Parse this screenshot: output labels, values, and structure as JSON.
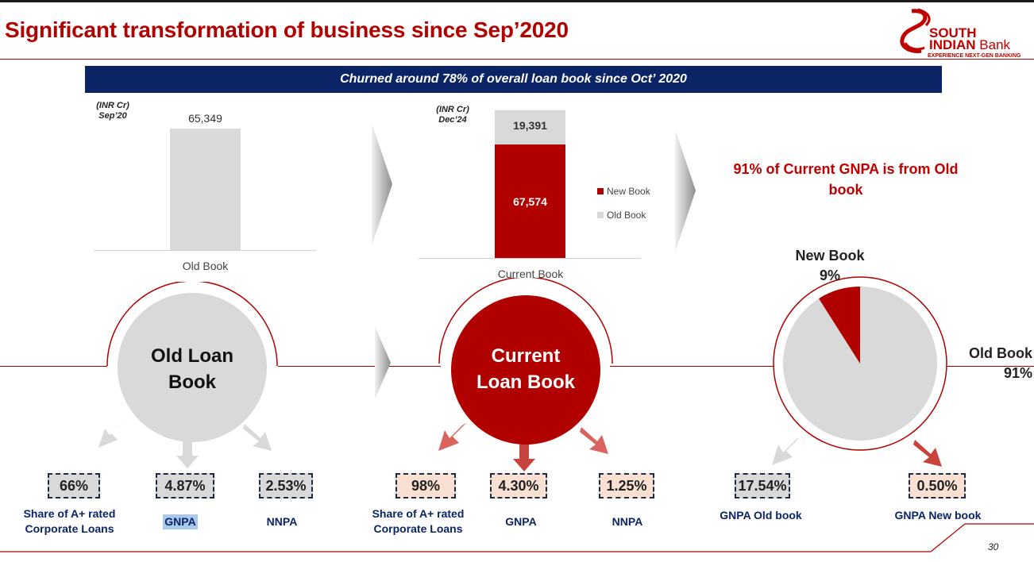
{
  "header": {
    "title": "Significant transformation of business since Sep’2020",
    "logo_line1": "SOUTH",
    "logo_line2a": "INDIAN",
    "logo_line2b": " Bank",
    "logo_tagline": "EXPERIENCE NEXT-GEN BANKING"
  },
  "banner": "Churned around 78% of overall loan book since Oct’ 2020",
  "chart_sep20": {
    "unit": "(INR Cr)",
    "period": "Sep’20",
    "category": "Old Book",
    "value_label": "65,349"
  },
  "chart_dec24": {
    "unit": "(INR Cr)",
    "period": "Dec’24",
    "category": "Current Book",
    "old_label": "19,391",
    "new_label": "67,574",
    "legend_new": "New Book",
    "legend_old": "Old Book"
  },
  "gnpa_headline": "91% of Current GNPA is from Old book",
  "pie": {
    "new_name": "New Book",
    "new_pct": "9%",
    "old_name": "Old Book",
    "old_pct": "91%"
  },
  "old_loan_book": {
    "title_line1": "Old Loan",
    "title_line2": "Book",
    "metrics": [
      {
        "value": "66%",
        "label1": "Share of A+ rated",
        "label2": "Corporate Loans"
      },
      {
        "value": "4.87%",
        "label1": "GNPA"
      },
      {
        "value": "2.53%",
        "label1": "NNPA"
      }
    ]
  },
  "current_loan_book": {
    "title_line1": "Current",
    "title_line2": "Loan Book",
    "metrics": [
      {
        "value": "98%",
        "label1": "Share of A+ rated",
        "label2": "Corporate Loans"
      },
      {
        "value": "4.30%",
        "label1": "GNPA"
      },
      {
        "value": "1.25%",
        "label1": "NNPA"
      }
    ]
  },
  "gnpa_split": {
    "metrics": [
      {
        "value": "17.54%",
        "label1": "GNPA Old book"
      },
      {
        "value": "0.50%",
        "label1": "GNPA New book"
      }
    ]
  },
  "page_number": "30",
  "colors": {
    "brand_red": "#b00000",
    "navy": "#0b2466",
    "grey": "#d9d9d9",
    "light_pink": "#f9e0d3"
  },
  "chart_data": [
    {
      "type": "bar",
      "title": "",
      "categories": [
        "Old Book"
      ],
      "series": [
        {
          "name": "",
          "values": [
            65349
          ]
        }
      ]
    },
    {
      "type": "bar",
      "title": "",
      "categories": [
        "Current Book"
      ],
      "series": [
        {
          "name": "New Book",
          "values": [
            67574
          ]
        },
        {
          "name": "Old Book",
          "values": [
            19391
          ]
        }
      ]
    },
    {
      "type": "pie",
      "title": "",
      "categories": [
        "New Book",
        "Old Book"
      ],
      "values": [
        9,
        91
      ]
    }
  ]
}
